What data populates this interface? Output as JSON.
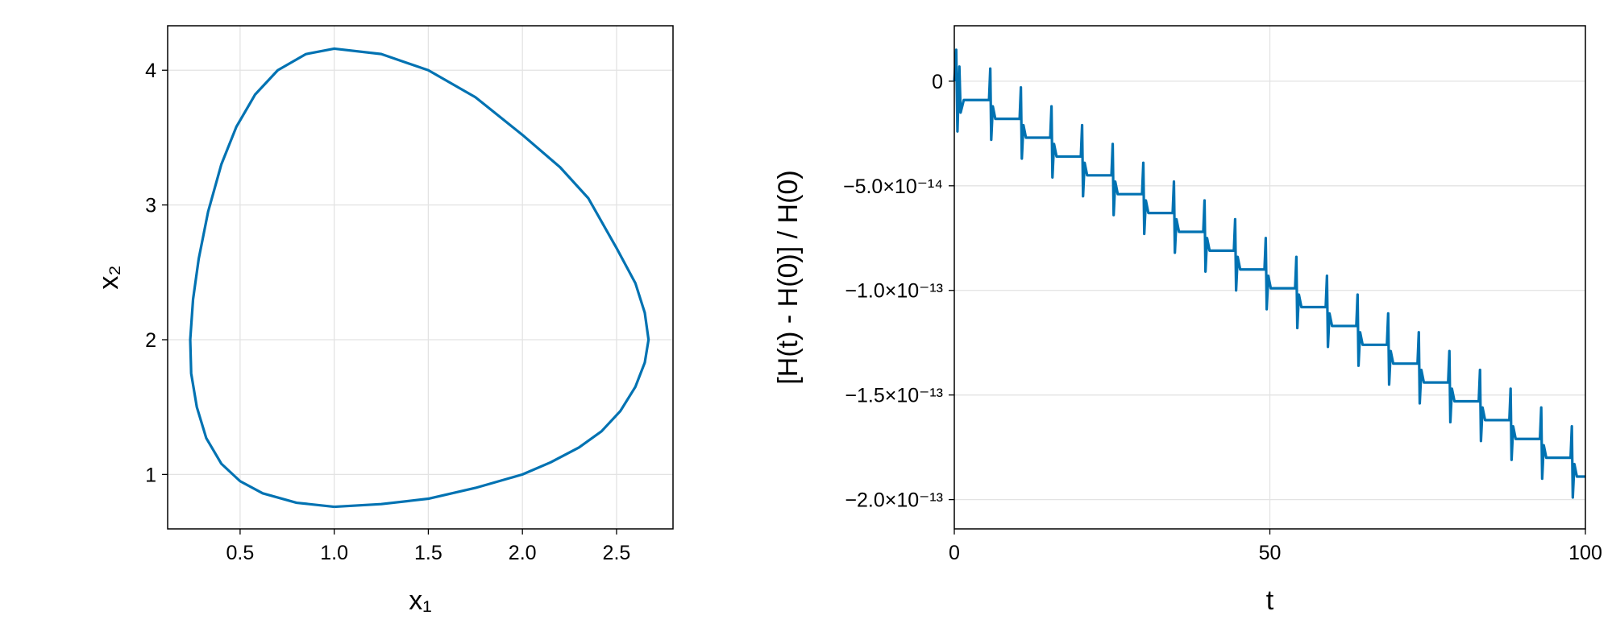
{
  "chart_data": [
    {
      "type": "line",
      "x_label": "x₁",
      "y_label": "x₂",
      "xlim": [
        0.115,
        2.8
      ],
      "ylim": [
        0.596,
        4.33
      ],
      "xticks": [
        0.5,
        {
          "value": 1,
          "label": "1.0"
        },
        1.5,
        {
          "value": 2,
          "label": "2.0"
        },
        2.5
      ],
      "yticks": [
        1,
        2,
        3,
        4
      ],
      "grid": true,
      "series": [
        {
          "color": "#0072b2",
          "x": [
            1.0,
            1.25,
            1.5,
            1.75,
            2.0,
            2.15,
            2.3,
            2.42,
            2.52,
            2.6,
            2.65,
            2.67,
            2.65,
            2.6,
            2.5,
            2.35,
            2.2,
            2.0,
            1.75,
            1.5,
            1.25,
            1.0,
            0.85,
            0.7,
            0.58,
            0.48,
            0.4,
            0.33,
            0.28,
            0.25,
            0.235,
            0.24,
            0.27,
            0.32,
            0.4,
            0.5,
            0.62,
            0.8,
            1.0
          ],
          "values": [
            0.76,
            0.78,
            0.82,
            0.9,
            1.0,
            1.09,
            1.2,
            1.32,
            1.47,
            1.65,
            1.83,
            2.0,
            2.2,
            2.42,
            2.68,
            3.05,
            3.28,
            3.52,
            3.8,
            4.0,
            4.12,
            4.16,
            4.12,
            4.0,
            3.82,
            3.58,
            3.3,
            2.95,
            2.6,
            2.3,
            2.0,
            1.75,
            1.5,
            1.27,
            1.08,
            0.95,
            0.86,
            0.79,
            0.76
          ]
        }
      ]
    },
    {
      "type": "line",
      "x_label": "t",
      "y_label": "[H(t) - H(0)] / H(0)",
      "xlim": [
        0,
        100
      ],
      "ylim": [
        -2.14e-13,
        2.65e-14
      ],
      "xticks": [
        0,
        50,
        100
      ],
      "yticks": [
        0,
        {
          "value": -5e-14,
          "label": "−5.0×10⁻¹⁴"
        },
        {
          "value": -1e-13,
          "label": "−1.0×10⁻¹³"
        },
        {
          "value": -1.5e-13,
          "label": "−1.5×10⁻¹³"
        },
        {
          "value": -2e-13,
          "label": "−2.0×10⁻¹³"
        }
      ],
      "grid": true,
      "series": [
        {
          "color": "#0072b2",
          "x": [
            0,
            0.3,
            0.5,
            0.8,
            1.0,
            1.5,
            5.5,
            5.7,
            5.85,
            6.1,
            6.5,
            10.35,
            10.55,
            10.7,
            10.95,
            11.35,
            15.2,
            15.4,
            15.55,
            15.8,
            16.2,
            20.05,
            20.25,
            20.4,
            20.65,
            21.05,
            24.9,
            25.1,
            25.25,
            25.5,
            25.9,
            29.75,
            29.95,
            30.1,
            30.35,
            30.75,
            34.6,
            34.8,
            34.95,
            35.2,
            35.6,
            39.45,
            39.65,
            39.8,
            40.05,
            40.45,
            44.3,
            44.5,
            44.65,
            44.9,
            45.3,
            49.15,
            49.35,
            49.5,
            49.75,
            50.15,
            54.0,
            54.2,
            54.35,
            54.6,
            55.0,
            58.85,
            59.05,
            59.2,
            59.45,
            59.85,
            63.7,
            63.9,
            64.05,
            64.3,
            64.7,
            68.55,
            68.75,
            68.9,
            69.15,
            69.55,
            73.4,
            73.6,
            73.75,
            74.0,
            74.4,
            78.25,
            78.45,
            78.6,
            78.85,
            79.25,
            83.1,
            83.3,
            83.45,
            83.7,
            84.1,
            87.95,
            88.15,
            88.3,
            88.55,
            88.95,
            92.8,
            93.0,
            93.15,
            93.4,
            93.8,
            97.65,
            97.85,
            98.0,
            98.25,
            98.65,
            100
          ],
          "values": [
            0,
            1.5e-14,
            -2.4e-14,
            7e-15,
            -1.5e-14,
            -9e-15,
            -9e-15,
            6e-15,
            -2.8e-14,
            -1.2e-14,
            -1.8e-14,
            -1.8e-14,
            -3e-15,
            -3.7e-14,
            -2.1e-14,
            -2.7e-14,
            -2.7e-14,
            -1.2e-14,
            -4.6e-14,
            -3e-14,
            -3.6e-14,
            -3.6e-14,
            -2.1e-14,
            -5.5e-14,
            -3.9e-14,
            -4.5e-14,
            -4.5e-14,
            -3e-14,
            -6.4e-14,
            -4.8e-14,
            -5.4e-14,
            -5.4e-14,
            -3.9e-14,
            -7.3e-14,
            -5.7e-14,
            -6.3e-14,
            -6.3e-14,
            -4.8e-14,
            -8.2e-14,
            -6.6e-14,
            -7.2e-14,
            -7.2e-14,
            -5.7e-14,
            -9.1e-14,
            -7.5e-14,
            -8.1e-14,
            -8.1e-14,
            -6.6e-14,
            -1e-13,
            -8.4e-14,
            -9e-14,
            -9e-14,
            -7.5e-14,
            -1.09e-13,
            -9.3e-14,
            -9.9e-14,
            -9.9e-14,
            -8.4e-14,
            -1.18e-13,
            -1.02e-13,
            -1.08e-13,
            -1.08e-13,
            -9.3e-14,
            -1.27e-13,
            -1.11e-13,
            -1.17e-13,
            -1.17e-13,
            -1.02e-13,
            -1.36e-13,
            -1.2e-13,
            -1.26e-13,
            -1.26e-13,
            -1.11e-13,
            -1.45e-13,
            -1.29e-13,
            -1.35e-13,
            -1.35e-13,
            -1.2e-13,
            -1.54e-13,
            -1.38e-13,
            -1.44e-13,
            -1.44e-13,
            -1.29e-13,
            -1.63e-13,
            -1.47e-13,
            -1.53e-13,
            -1.53e-13,
            -1.38e-13,
            -1.72e-13,
            -1.56e-13,
            -1.62e-13,
            -1.62e-13,
            -1.47e-13,
            -1.81e-13,
            -1.65e-13,
            -1.71e-13,
            -1.71e-13,
            -1.56e-13,
            -1.9e-13,
            -1.74e-13,
            -1.8e-13,
            -1.8e-13,
            -1.65e-13,
            -1.99e-13,
            -1.83e-13,
            -1.89e-13,
            -1.89e-13
          ]
        }
      ]
    }
  ]
}
